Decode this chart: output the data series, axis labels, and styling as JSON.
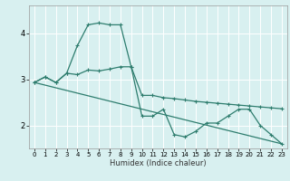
{
  "title": "",
  "xlabel": "Humidex (Indice chaleur)",
  "background_color": "#d8f0f0",
  "grid_color": "#ffffff",
  "line_color": "#2e7d6e",
  "xlim": [
    -0.5,
    23.5
  ],
  "ylim": [
    1.5,
    4.6
  ],
  "xticks": [
    0,
    1,
    2,
    3,
    4,
    5,
    6,
    7,
    8,
    9,
    10,
    11,
    12,
    13,
    14,
    15,
    16,
    17,
    18,
    19,
    20,
    21,
    22,
    23
  ],
  "yticks": [
    2,
    3,
    4
  ],
  "curve1_x": [
    0,
    1,
    2,
    3,
    4,
    5,
    6,
    7,
    8,
    9,
    10,
    11,
    12,
    13,
    14,
    15,
    16,
    17,
    18,
    19,
    20,
    21,
    22,
    23
  ],
  "curve1_y": [
    2.93,
    3.05,
    2.93,
    3.13,
    3.73,
    4.18,
    4.22,
    4.18,
    4.18,
    3.27,
    2.2,
    2.2,
    2.35,
    1.8,
    1.75,
    1.87,
    2.05,
    2.05,
    2.2,
    2.35,
    2.35,
    2.0,
    1.8,
    1.6
  ],
  "curve2_x": [
    0,
    1,
    2,
    3,
    4,
    5,
    6,
    7,
    8,
    9,
    10,
    11,
    12,
    13,
    14,
    15,
    16,
    17,
    18,
    19,
    20,
    21,
    22,
    23
  ],
  "curve2_y": [
    2.93,
    3.05,
    2.93,
    3.13,
    3.1,
    3.2,
    3.18,
    3.22,
    3.27,
    3.27,
    2.65,
    2.65,
    2.6,
    2.58,
    2.55,
    2.52,
    2.5,
    2.48,
    2.46,
    2.44,
    2.42,
    2.4,
    2.38,
    2.36
  ],
  "curve3_x": [
    0,
    23
  ],
  "curve3_y": [
    2.93,
    1.6
  ]
}
